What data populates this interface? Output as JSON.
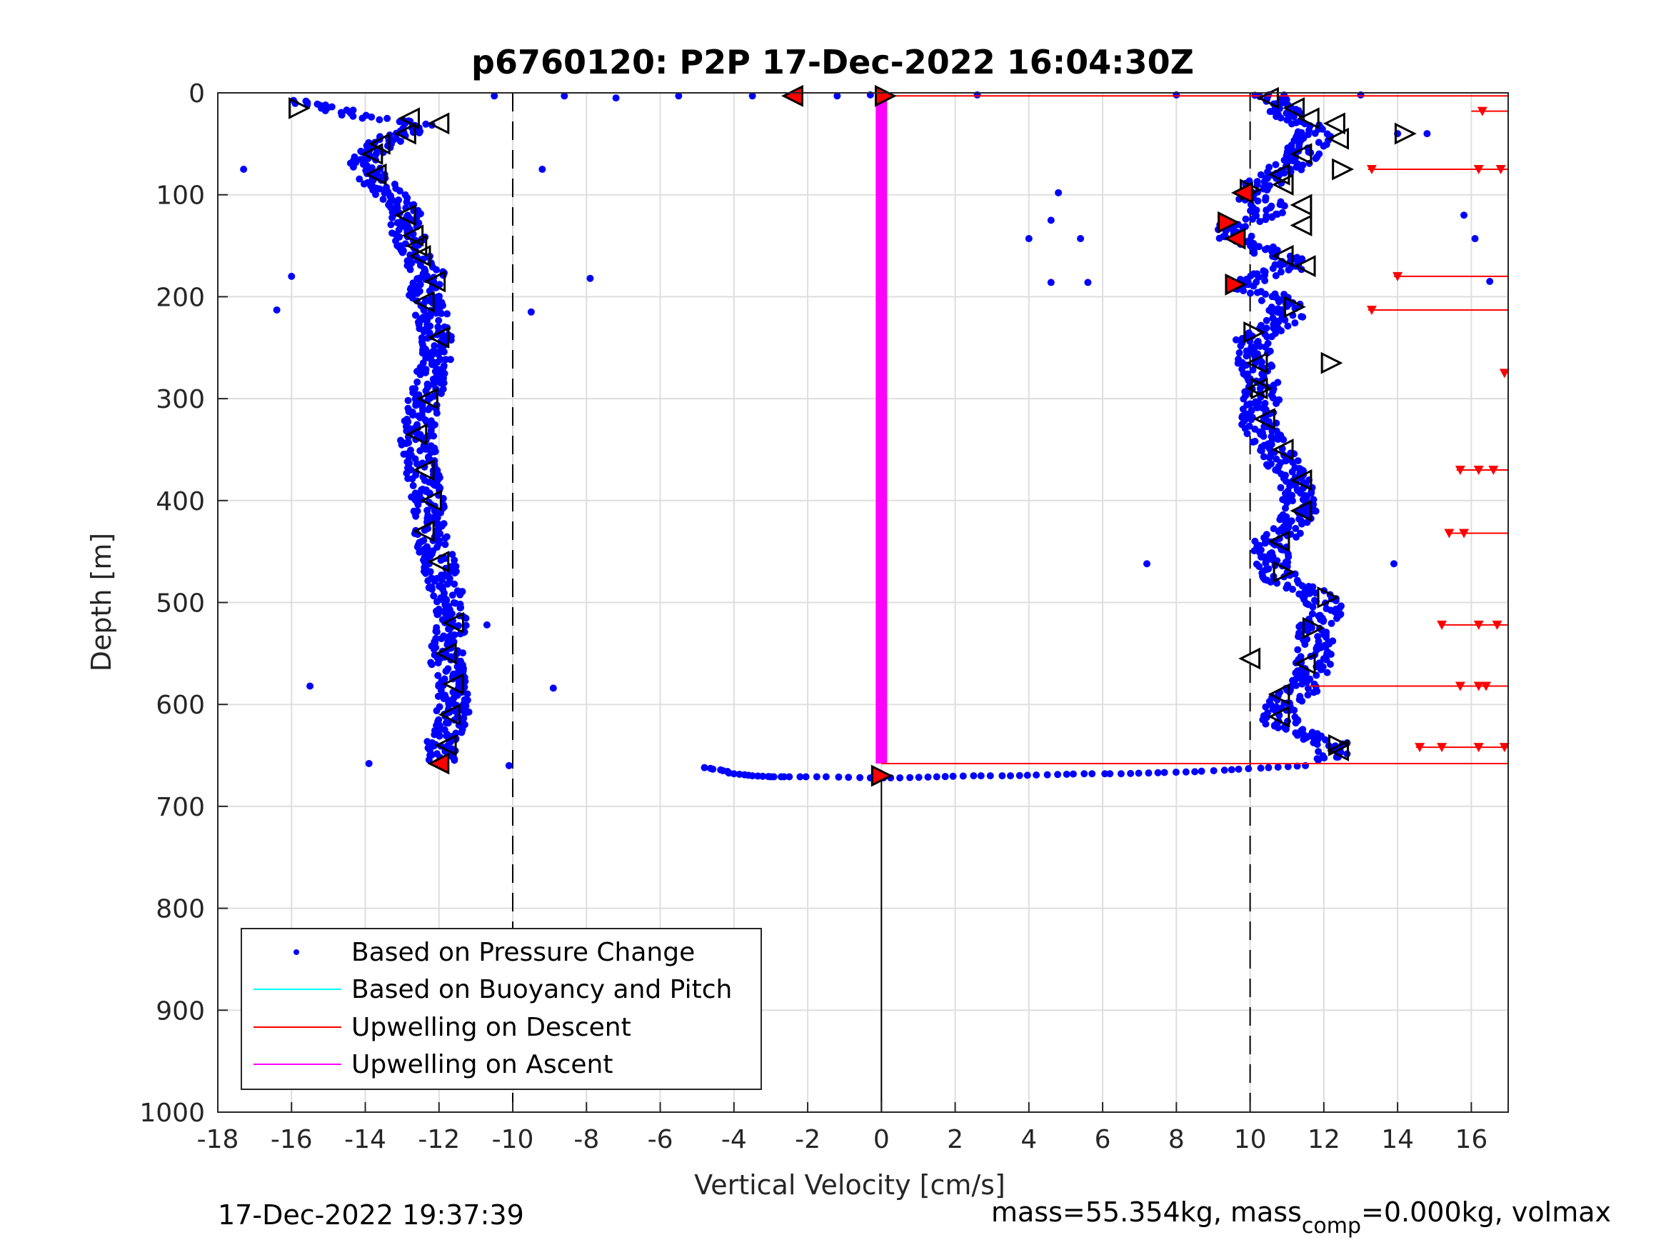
{
  "chart_data": {
    "type": "scatter",
    "title": "p6760120: P2P 17-Dec-2022 16:04:30Z",
    "xlabel": "Vertical Velocity [cm/s]",
    "ylabel": "Depth [m]",
    "xlim": [
      -18,
      17
    ],
    "ylim": [
      0,
      1000
    ],
    "y_reversed": true,
    "grid": true,
    "x_ticks": [
      "-18",
      "-16",
      "-14",
      "-12",
      "-10",
      "-8",
      "-6",
      "-4",
      "-2",
      "0",
      "2",
      "4",
      "6",
      "8",
      "10",
      "12",
      "14",
      "16"
    ],
    "y_ticks": [
      "0",
      "100",
      "200",
      "300",
      "400",
      "500",
      "600",
      "700",
      "800",
      "900",
      "1000"
    ],
    "legend_position": "bottom-left",
    "legend": [
      {
        "label": "Based on Pressure Change",
        "color": "#0000ff",
        "style": "dot"
      },
      {
        "label": "Based on Buoyancy and Pitch",
        "color": "#00ffff",
        "style": "line"
      },
      {
        "label": "Upwelling on Descent",
        "color": "#ff0000",
        "style": "line"
      },
      {
        "label": "Upwelling on Ascent",
        "color": "#ff00ff",
        "style": "line"
      }
    ],
    "reference_lines": {
      "dashed_x": [
        -10,
        10
      ],
      "solid_x": [
        0
      ],
      "solid_x_depth_start": 670
    },
    "series": [
      {
        "name": "Based on Pressure Change",
        "descent_profile": [
          [
            0,
            -16.0
          ],
          [
            10,
            -15.5
          ],
          [
            20,
            -14.5
          ],
          [
            30,
            -12.5
          ],
          [
            40,
            -13.0
          ],
          [
            50,
            -13.5
          ],
          [
            60,
            -13.8
          ],
          [
            70,
            -14.0
          ],
          [
            80,
            -13.9
          ],
          [
            90,
            -13.6
          ],
          [
            100,
            -13.3
          ],
          [
            110,
            -13.0
          ],
          [
            120,
            -12.9
          ],
          [
            130,
            -12.9
          ],
          [
            140,
            -12.8
          ],
          [
            150,
            -12.7
          ],
          [
            160,
            -12.6
          ],
          [
            170,
            -12.4
          ],
          [
            180,
            -12.2
          ],
          [
            190,
            -12.3
          ],
          [
            200,
            -12.4
          ],
          [
            210,
            -12.3
          ],
          [
            220,
            -12.2
          ],
          [
            240,
            -12.1
          ],
          [
            260,
            -12.1
          ],
          [
            280,
            -12.2
          ],
          [
            300,
            -12.4
          ],
          [
            320,
            -12.5
          ],
          [
            340,
            -12.6
          ],
          [
            360,
            -12.5
          ],
          [
            380,
            -12.4
          ],
          [
            400,
            -12.3
          ],
          [
            420,
            -12.3
          ],
          [
            440,
            -12.2
          ],
          [
            460,
            -12.0
          ],
          [
            480,
            -11.9
          ],
          [
            500,
            -11.7
          ],
          [
            520,
            -11.7
          ],
          [
            540,
            -11.8
          ],
          [
            560,
            -11.8
          ],
          [
            580,
            -11.6
          ],
          [
            600,
            -11.6
          ],
          [
            620,
            -11.7
          ],
          [
            640,
            -11.9
          ],
          [
            655,
            -12.0
          ]
        ],
        "ascent_profile": [
          [
            655,
            12.3
          ],
          [
            640,
            12.3
          ],
          [
            620,
            10.8
          ],
          [
            600,
            10.8
          ],
          [
            580,
            11.6
          ],
          [
            560,
            11.7
          ],
          [
            540,
            11.8
          ],
          [
            520,
            11.8
          ],
          [
            510,
            12.0
          ],
          [
            500,
            12.0
          ],
          [
            490,
            11.6
          ],
          [
            480,
            10.9
          ],
          [
            460,
            10.6
          ],
          [
            440,
            10.6
          ],
          [
            420,
            11.3
          ],
          [
            400,
            11.3
          ],
          [
            380,
            11.3
          ],
          [
            360,
            10.8
          ],
          [
            340,
            10.5
          ],
          [
            320,
            10.2
          ],
          [
            300,
            10.3
          ],
          [
            280,
            10.3
          ],
          [
            260,
            10.1
          ],
          [
            240,
            10.1
          ],
          [
            220,
            11.0
          ],
          [
            210,
            11.0
          ],
          [
            200,
            10.6
          ],
          [
            190,
            9.8
          ],
          [
            180,
            10.2
          ],
          [
            170,
            11.2
          ],
          [
            160,
            10.8
          ],
          [
            150,
            10.2
          ],
          [
            140,
            9.5
          ],
          [
            130,
            9.5
          ],
          [
            120,
            10.4
          ],
          [
            110,
            10.6
          ],
          [
            100,
            9.8
          ],
          [
            90,
            10.3
          ],
          [
            80,
            10.6
          ],
          [
            70,
            11.2
          ],
          [
            60,
            11.4
          ],
          [
            50,
            11.6
          ],
          [
            40,
            11.8
          ],
          [
            30,
            11.5
          ],
          [
            20,
            11.0
          ],
          [
            10,
            10.8
          ],
          [
            0,
            10.5
          ]
        ],
        "surface_points": [
          [
            3,
            -10.5
          ],
          [
            3,
            -8.6
          ],
          [
            5,
            -7.2
          ],
          [
            3,
            -5.5
          ],
          [
            3,
            -3.5
          ],
          [
            3,
            -2.3
          ],
          [
            3,
            -1.2
          ],
          [
            2,
            -0.3
          ],
          [
            2,
            2.6
          ],
          [
            2,
            8.0
          ],
          [
            2,
            10.5
          ],
          [
            2,
            13.0
          ]
        ],
        "bottom_points": [
          [
            662,
            -4.8
          ],
          [
            665,
            -4.3
          ],
          [
            668,
            -4.0
          ],
          [
            670,
            -3.5
          ],
          [
            671,
            -3.0
          ],
          [
            671,
            -2.5
          ],
          [
            671,
            -1.5
          ],
          [
            672,
            -0.3
          ],
          [
            672,
            0.5
          ],
          [
            671,
            1.5
          ],
          [
            670,
            2.5
          ],
          [
            670,
            3.5
          ],
          [
            669,
            4.5
          ],
          [
            668,
            5.5
          ],
          [
            668,
            6.5
          ],
          [
            667,
            7.5
          ],
          [
            666,
            8.5
          ],
          [
            664,
            9.5
          ],
          [
            662,
            10.5
          ],
          [
            660,
            11.5
          ]
        ],
        "outliers": [
          [
            75,
            -17.3
          ],
          [
            180,
            -16.0
          ],
          [
            213,
            -16.4
          ],
          [
            582,
            -15.5
          ],
          [
            658,
            -13.9
          ],
          [
            660,
            -10.1
          ],
          [
            75,
            -9.2
          ],
          [
            215,
            -9.5
          ],
          [
            182,
            -7.9
          ],
          [
            584,
            -8.9
          ],
          [
            522,
            -10.7
          ],
          [
            98,
            4.8
          ],
          [
            125,
            4.6
          ],
          [
            143,
            4.0
          ],
          [
            143,
            5.4
          ],
          [
            186,
            4.6
          ],
          [
            186,
            5.6
          ],
          [
            462,
            7.2
          ],
          [
            462,
            13.9
          ],
          [
            40,
            14.0
          ],
          [
            40,
            14.8
          ],
          [
            120,
            15.8
          ],
          [
            143,
            16.1
          ],
          [
            185,
            16.5
          ]
        ]
      },
      {
        "name": "Upwelling on Ascent",
        "depth_range": [
          0,
          658
        ],
        "x": 0
      },
      {
        "name": "Upwelling on Descent",
        "horizontal_lines": [
          {
            "depth": 3,
            "x_start": 0,
            "x_end": 17
          },
          {
            "depth": 658,
            "x_start": 0,
            "x_end": 17
          },
          {
            "depth": 18,
            "x_start": 16,
            "x_end": 17
          },
          {
            "depth": 75,
            "x_start": 13.2,
            "x_end": 17
          },
          {
            "depth": 180,
            "x_start": 13.9,
            "x_end": 17
          },
          {
            "depth": 213,
            "x_start": 13.2,
            "x_end": 17
          },
          {
            "depth": 370,
            "x_start": 15.6,
            "x_end": 17
          },
          {
            "depth": 432,
            "x_start": 15.4,
            "x_end": 17
          },
          {
            "depth": 522,
            "x_start": 15.2,
            "x_end": 17
          },
          {
            "depth": 582,
            "x_start": 11.6,
            "x_end": 17
          },
          {
            "depth": 642,
            "x_start": 14.5,
            "x_end": 17
          }
        ],
        "markers": [
          [
            18,
            16.3
          ],
          [
            75,
            13.3
          ],
          [
            75,
            16.2
          ],
          [
            75,
            16.8
          ],
          [
            180,
            14.0
          ],
          [
            213,
            13.3
          ],
          [
            275,
            16.9
          ],
          [
            370,
            15.7
          ],
          [
            370,
            16.2
          ],
          [
            370,
            16.6
          ],
          [
            432,
            15.4
          ],
          [
            432,
            15.8
          ],
          [
            522,
            15.2
          ],
          [
            522,
            16.2
          ],
          [
            522,
            16.7
          ],
          [
            582,
            15.7
          ],
          [
            582,
            16.2
          ],
          [
            582,
            16.4
          ],
          [
            642,
            14.6
          ],
          [
            642,
            15.2
          ],
          [
            642,
            16.2
          ],
          [
            642,
            16.9
          ]
        ]
      }
    ],
    "triangle_markers": {
      "left_open": [
        [
          25,
          -12.8
        ],
        [
          30,
          -12.0
        ],
        [
          40,
          -12.9
        ],
        [
          50,
          -13.6
        ],
        [
          60,
          -13.8
        ],
        [
          80,
          -13.7
        ],
        [
          120,
          -12.9
        ],
        [
          140,
          -12.7
        ],
        [
          150,
          -12.6
        ],
        [
          160,
          -12.5
        ],
        [
          185,
          -12.1
        ],
        [
          205,
          -12.4
        ],
        [
          240,
          -12.0
        ],
        [
          300,
          -12.3
        ],
        [
          335,
          -12.6
        ],
        [
          370,
          -12.4
        ],
        [
          400,
          -12.2
        ],
        [
          430,
          -12.4
        ],
        [
          460,
          -12.0
        ],
        [
          520,
          -11.6
        ],
        [
          550,
          -11.8
        ],
        [
          580,
          -11.6
        ],
        [
          610,
          -11.7
        ],
        [
          640,
          -11.8
        ],
        [
          5,
          10.5
        ],
        [
          15,
          11.2
        ],
        [
          25,
          11.6
        ],
        [
          30,
          12.3
        ],
        [
          45,
          12.4
        ],
        [
          60,
          11.4
        ],
        [
          80,
          10.8
        ],
        [
          90,
          10.9
        ],
        [
          110,
          11.4
        ],
        [
          130,
          11.4
        ],
        [
          160,
          10.9
        ],
        [
          170,
          11.5
        ],
        [
          265,
          10.2
        ],
        [
          290,
          10.2
        ],
        [
          320,
          10.4
        ],
        [
          350,
          10.9
        ],
        [
          380,
          11.4
        ],
        [
          410,
          11.4
        ],
        [
          440,
          10.8
        ],
        [
          555,
          10.0
        ],
        [
          560,
          11.5
        ],
        [
          590,
          10.8
        ],
        [
          612,
          10.8
        ],
        [
          645,
          12.4
        ]
      ],
      "right_open": [
        [
          15,
          -15.8
        ],
        [
          40,
          14.2
        ],
        [
          75,
          12.5
        ],
        [
          95,
          10.0
        ],
        [
          235,
          10.1
        ],
        [
          265,
          12.2
        ],
        [
          290,
          10.3
        ],
        [
          470,
          10.9
        ],
        [
          495,
          12.1
        ],
        [
          525,
          11.7
        ],
        [
          640,
          12.4
        ],
        [
          210,
          11.2
        ]
      ],
      "red_filled": [
        [
          3,
          -2.4
        ],
        [
          3,
          0.1
        ],
        [
          98,
          9.8
        ],
        [
          127,
          9.4
        ],
        [
          143,
          9.6
        ],
        [
          188,
          9.6
        ],
        [
          658,
          -12.0
        ],
        [
          670,
          0.0
        ]
      ]
    }
  },
  "footer": {
    "timestamp": "17-Dec-2022 19:37:39",
    "mass_text_part1": "mass=55.354kg, mass",
    "mass_sub": "comp",
    "mass_text_part2": "=0.000kg, volmax"
  }
}
